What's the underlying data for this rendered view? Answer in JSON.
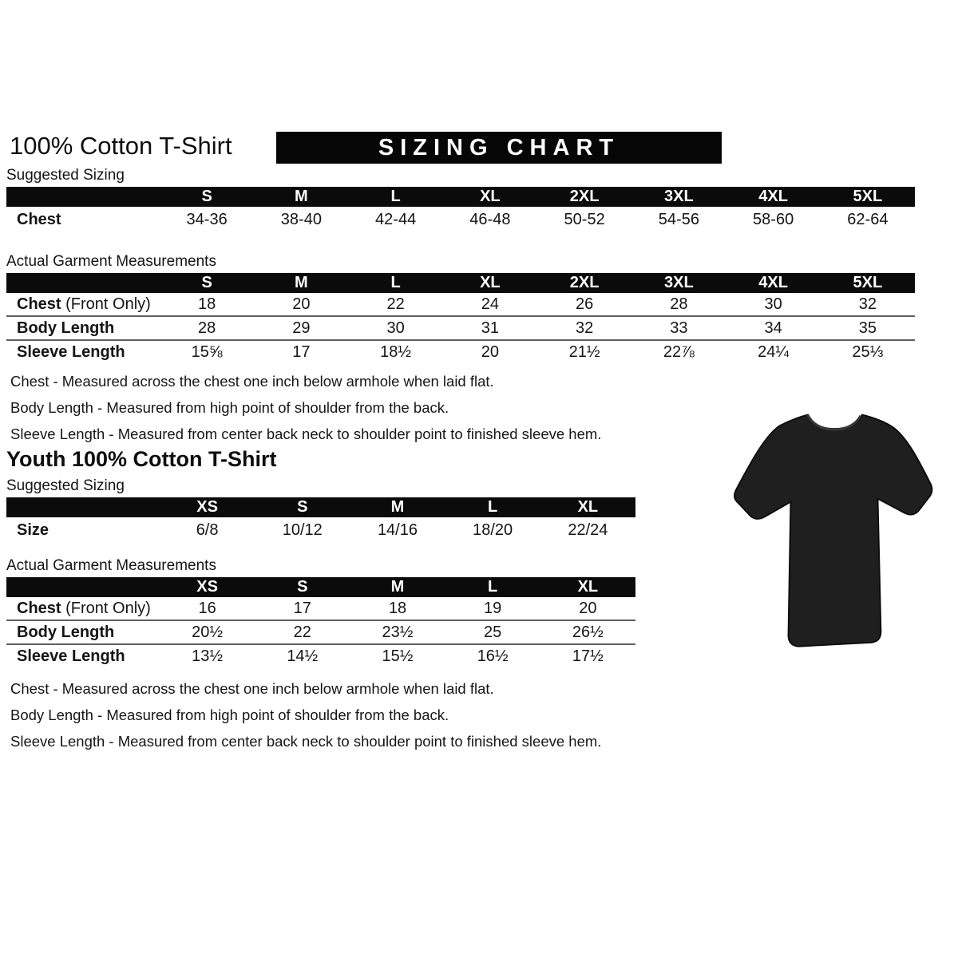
{
  "adult": {
    "title": "100% Cotton T-Shirt",
    "banner": "SIZING CHART",
    "suggested_label": "Suggested Sizing",
    "actual_label": "Actual Garment Measurements",
    "suggested": {
      "columns": [
        "S",
        "M",
        "L",
        "XL",
        "2XL",
        "3XL",
        "4XL",
        "5XL"
      ],
      "rows": [
        {
          "label": "Chest",
          "suffix": "",
          "values": [
            "34-36",
            "38-40",
            "42-44",
            "46-48",
            "50-52",
            "54-56",
            "58-60",
            "62-64"
          ]
        }
      ]
    },
    "actual": {
      "columns": [
        "S",
        "M",
        "L",
        "XL",
        "2XL",
        "3XL",
        "4XL",
        "5XL"
      ],
      "rows": [
        {
          "label": "Chest",
          "suffix": " (Front Only)",
          "values": [
            "18",
            "20",
            "22",
            "24",
            "26",
            "28",
            "30",
            "32"
          ]
        },
        {
          "label": "Body Length",
          "suffix": "",
          "values": [
            "28",
            "29",
            "30",
            "31",
            "32",
            "33",
            "34",
            "35"
          ]
        },
        {
          "label": "Sleeve Length",
          "suffix": "",
          "values": [
            "15⅝",
            "17",
            "18½",
            "20",
            "21½",
            "22⅞",
            "24¼",
            "25⅓"
          ]
        }
      ]
    },
    "notes": [
      "Chest - Measured across the chest one inch below armhole when laid flat.",
      "Body Length - Measured from high point of shoulder from the back.",
      "Sleeve Length - Measured from center back neck to shoulder point to finished sleeve hem."
    ]
  },
  "youth": {
    "title": "Youth 100% Cotton T-Shirt",
    "suggested_label": "Suggested Sizing",
    "actual_label": "Actual Garment Measurements",
    "suggested": {
      "columns": [
        "XS",
        "S",
        "M",
        "L",
        "XL"
      ],
      "rows": [
        {
          "label": "Size",
          "suffix": "",
          "values": [
            "6/8",
            "10/12",
            "14/16",
            "18/20",
            "22/24"
          ]
        }
      ]
    },
    "actual": {
      "columns": [
        "XS",
        "S",
        "M",
        "L",
        "XL"
      ],
      "rows": [
        {
          "label": "Chest",
          "suffix": " (Front Only)",
          "values": [
            "16",
            "17",
            "18",
            "19",
            "20"
          ]
        },
        {
          "label": "Body Length",
          "suffix": "",
          "values": [
            "20½",
            "22",
            "23½",
            "25",
            "26½"
          ]
        },
        {
          "label": "Sleeve Length",
          "suffix": "",
          "values": [
            "13½",
            "14½",
            "15½",
            "16½",
            "17½"
          ]
        }
      ]
    },
    "notes": [
      "Chest - Measured across the chest one inch below armhole when laid flat.",
      "Body Length - Measured from high point of shoulder from the back.",
      "Sleeve Length - Measured from center back neck to shoulder point to finished sleeve hem."
    ]
  },
  "tshirt": {
    "name": "black t-shirt product photo",
    "color": "#1f1f1f",
    "collar_color": "#3a3a3a"
  }
}
